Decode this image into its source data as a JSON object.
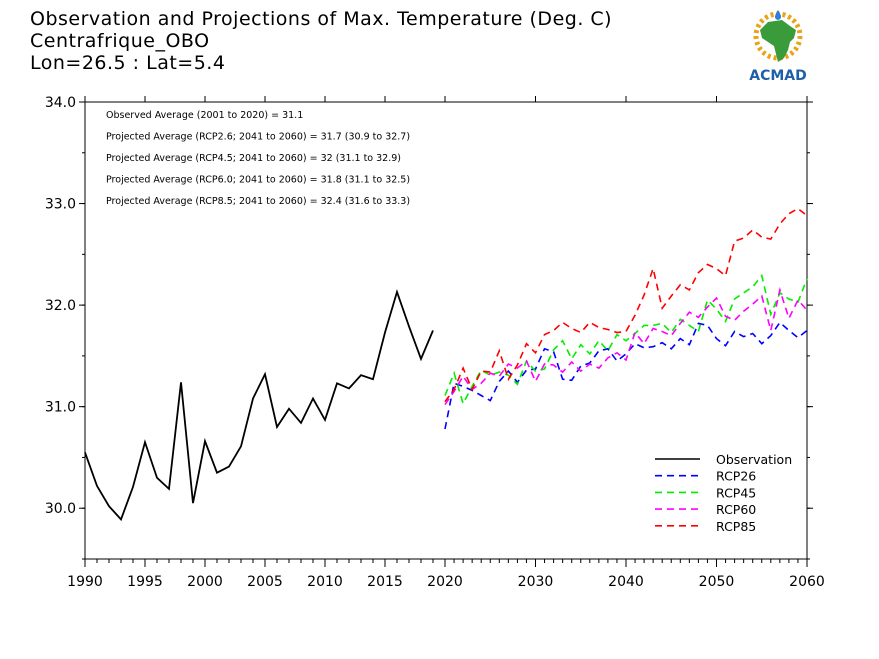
{
  "title": {
    "line1": "Observation and Projections of Max. Temperature (Deg. C)",
    "line2": "Centrafrique_OBO",
    "line3": "Lon=26.5 : Lat=5.4"
  },
  "logo": {
    "text": "ACMAD",
    "icon": "africa-map-sun-logo"
  },
  "chart_data": {
    "type": "line",
    "annotations": [
      "Observed Average (2001 to 2020) = 31.1",
      "Projected Average (RCP2.6; 2041 to 2060) = 31.7 (30.9 to 32.7)",
      "Projected Average (RCP4.5; 2041 to 2060) = 32 (31.1 to 32.9)",
      "Projected Average (RCP6.0; 2041 to 2060) = 31.8 (31.1 to 32.5)",
      "Projected Average (RCP8.5; 2041 to 2060) = 32.4 (31.6 to 33.3)"
    ],
    "ylim": [
      29.5,
      34.0
    ],
    "yticks": [
      30.0,
      31.0,
      32.0,
      33.0,
      34.0
    ],
    "ytick_labels": [
      "30.0",
      "31.0",
      "32.0",
      "33.0",
      "34.0"
    ],
    "xticks_left": [
      1990,
      1995,
      2000,
      2005,
      2010,
      2015,
      2020
    ],
    "xticks_right": [
      2020,
      2030,
      2040,
      2050,
      2060
    ],
    "xtick_labels": [
      "1990",
      "1995",
      "2000",
      "2005",
      "2010",
      "2015",
      "2020",
      "2030",
      "2040",
      "2050",
      "2060"
    ],
    "legend_position": "bottom-right",
    "series": [
      {
        "name": "Observation",
        "color": "#000000",
        "dashed": false,
        "x": [
          1990,
          1991,
          1992,
          1993,
          1994,
          1995,
          1996,
          1997,
          1998,
          1999,
          2000,
          2001,
          2002,
          2003,
          2004,
          2005,
          2006,
          2007,
          2008,
          2009,
          2010,
          2011,
          2012,
          2013,
          2014,
          2015,
          2016,
          2017,
          2018,
          2019
        ],
        "values": [
          30.55,
          30.22,
          30.02,
          29.89,
          30.21,
          30.65,
          30.3,
          30.19,
          31.24,
          30.05,
          30.66,
          30.35,
          30.41,
          30.61,
          31.08,
          31.32,
          30.8,
          30.98,
          30.84,
          31.08,
          30.87,
          31.23,
          31.18,
          31.31,
          31.27,
          31.73,
          32.13,
          31.79,
          31.47,
          31.75
        ]
      },
      {
        "name": "RCP26",
        "color": "#0000ff",
        "dashed": true,
        "x": [
          2020,
          2021,
          2022,
          2023,
          2024,
          2025,
          2026,
          2027,
          2028,
          2029,
          2030,
          2031,
          2032,
          2033,
          2034,
          2035,
          2036,
          2037,
          2038,
          2039,
          2040,
          2041,
          2042,
          2043,
          2044,
          2045,
          2046,
          2047,
          2048,
          2049,
          2050,
          2051,
          2052,
          2053,
          2054,
          2055,
          2056,
          2057,
          2058,
          2059,
          2060
        ],
        "values": [
          30.78,
          31.23,
          31.2,
          31.16,
          31.11,
          31.06,
          31.25,
          31.35,
          31.24,
          31.36,
          31.37,
          31.57,
          31.54,
          31.27,
          31.26,
          31.4,
          31.43,
          31.55,
          31.57,
          31.45,
          31.52,
          31.62,
          31.58,
          31.59,
          31.63,
          31.57,
          31.67,
          31.61,
          31.82,
          31.8,
          31.67,
          31.6,
          31.74,
          31.69,
          31.72,
          31.62,
          31.7,
          31.83,
          31.75,
          31.68,
          31.75
        ]
      },
      {
        "name": "RCP45",
        "color": "#00ee00",
        "dashed": true,
        "x": [
          2020,
          2021,
          2022,
          2023,
          2024,
          2025,
          2026,
          2027,
          2028,
          2029,
          2030,
          2031,
          2032,
          2033,
          2034,
          2035,
          2036,
          2037,
          2038,
          2039,
          2040,
          2041,
          2042,
          2043,
          2044,
          2045,
          2046,
          2047,
          2048,
          2049,
          2050,
          2051,
          2052,
          2053,
          2054,
          2055,
          2056,
          2057,
          2058,
          2059,
          2060
        ],
        "values": [
          31.11,
          31.33,
          31.03,
          31.2,
          31.36,
          31.31,
          31.34,
          31.31,
          31.22,
          31.45,
          31.35,
          31.37,
          31.56,
          31.65,
          31.47,
          31.61,
          31.52,
          31.65,
          31.55,
          31.71,
          31.65,
          31.72,
          31.8,
          31.8,
          31.82,
          31.73,
          31.86,
          31.8,
          31.74,
          32.05,
          31.96,
          31.84,
          32.06,
          32.12,
          32.18,
          32.29,
          31.91,
          32.12,
          32.06,
          32.03,
          32.26
        ]
      },
      {
        "name": "RCP60",
        "color": "#ff00ff",
        "dashed": true,
        "x": [
          2020,
          2021,
          2022,
          2023,
          2024,
          2025,
          2026,
          2027,
          2028,
          2029,
          2030,
          2031,
          2032,
          2033,
          2034,
          2035,
          2036,
          2037,
          2038,
          2039,
          2040,
          2041,
          2042,
          2043,
          2044,
          2045,
          2046,
          2047,
          2048,
          2049,
          2050,
          2051,
          2052,
          2053,
          2054,
          2055,
          2056,
          2057,
          2058,
          2059,
          2060
        ],
        "values": [
          31.02,
          31.15,
          31.3,
          31.17,
          31.23,
          31.33,
          31.3,
          31.42,
          31.38,
          31.45,
          31.25,
          31.42,
          31.41,
          31.34,
          31.44,
          31.35,
          31.42,
          31.38,
          31.48,
          31.53,
          31.46,
          31.73,
          31.62,
          31.77,
          31.74,
          31.7,
          31.82,
          31.93,
          31.88,
          31.98,
          32.07,
          31.89,
          31.85,
          31.94,
          32.01,
          32.09,
          31.75,
          32.15,
          31.87,
          32.05,
          31.95
        ]
      },
      {
        "name": "RCP85",
        "color": "#ff0000",
        "dashed": true,
        "x": [
          2020,
          2021,
          2022,
          2023,
          2024,
          2025,
          2026,
          2027,
          2028,
          2029,
          2030,
          2031,
          2032,
          2033,
          2034,
          2035,
          2036,
          2037,
          2038,
          2039,
          2040,
          2041,
          2042,
          2043,
          2044,
          2045,
          2046,
          2047,
          2048,
          2049,
          2050,
          2051,
          2052,
          2053,
          2054,
          2055,
          2056,
          2057,
          2058,
          2059,
          2060
        ],
        "values": [
          31.05,
          31.17,
          31.38,
          31.17,
          31.35,
          31.34,
          31.55,
          31.27,
          31.41,
          31.62,
          31.53,
          31.71,
          31.75,
          31.83,
          31.77,
          31.73,
          31.83,
          31.78,
          31.76,
          31.73,
          31.74,
          31.9,
          32.1,
          32.36,
          31.97,
          32.09,
          32.2,
          32.15,
          32.32,
          32.4,
          32.36,
          32.29,
          32.63,
          32.66,
          32.74,
          32.67,
          32.65,
          32.8,
          32.9,
          32.95,
          32.88
        ]
      }
    ]
  }
}
